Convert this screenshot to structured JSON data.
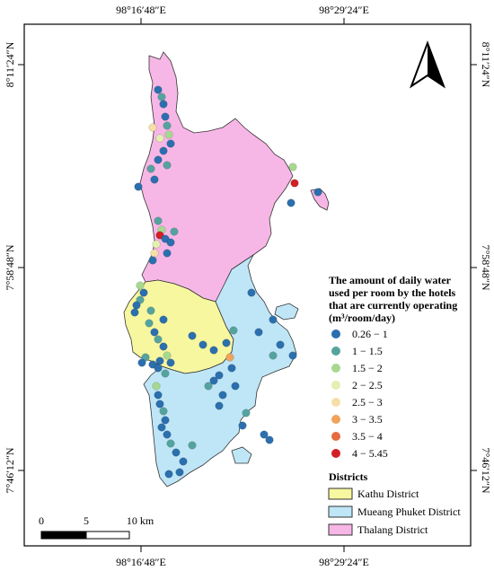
{
  "coords": {
    "top": [
      "98°16′48″E",
      "98°29′24″E"
    ],
    "bottom": [
      "98°16′48″E",
      "98°29′24″E"
    ],
    "left": [
      "8°11′24″N",
      "7°58′48″N",
      "7°46′12″N"
    ],
    "right": [
      "8°11′24″N",
      "7°58′48″N",
      "7°46′12″N"
    ]
  },
  "legend": {
    "title_lines": [
      "The amount of daily water",
      "used per room by the hotels",
      "that are currently operating",
      "(m³/room/day)"
    ],
    "classes": [
      {
        "label": "0.26 − 1",
        "color": "#2b6fae"
      },
      {
        "label": "1 − 1.5",
        "color": "#55a39f"
      },
      {
        "label": "1.5 − 2",
        "color": "#a7d88f"
      },
      {
        "label": "2 − 2.5",
        "color": "#e3f0b1"
      },
      {
        "label": "2.5 − 3",
        "color": "#f6dfa6"
      },
      {
        "label": "3 − 3.5",
        "color": "#f0a35b"
      },
      {
        "label": "3.5 − 4",
        "color": "#e46b3e"
      },
      {
        "label": "4 − 5.45",
        "color": "#d21f26"
      }
    ],
    "districts_title": "Districts",
    "districts": [
      {
        "label": "Kathu District",
        "color": "#f7f7a0"
      },
      {
        "label": "Mueang Phuket District",
        "color": "#bfe6f7"
      },
      {
        "label": "Thalang District",
        "color": "#f7b7e6"
      }
    ]
  },
  "scale_bar": {
    "labels": [
      "0",
      "5",
      "10 km"
    ]
  },
  "north_arrow_icon": "north-arrow-icon"
}
